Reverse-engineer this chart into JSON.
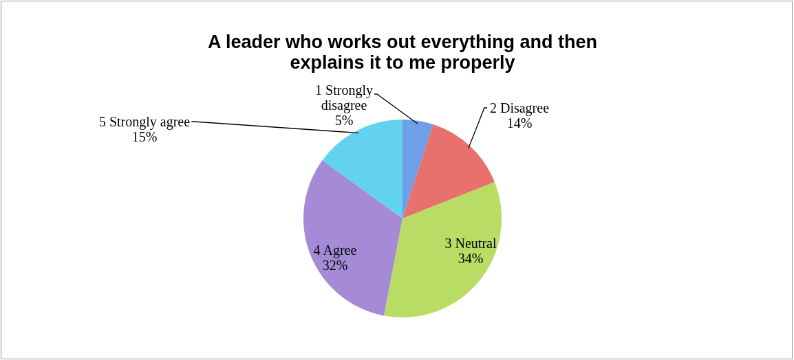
{
  "chart_data": {
    "type": "pie",
    "title": "A leader who works out everything and then explains it to me properly",
    "categories": [
      "1 Strongly disagree",
      "2 Disagree",
      "3 Neutral",
      "4 Agree",
      "5 Strongly agree"
    ],
    "values": [
      5,
      14,
      34,
      32,
      15
    ],
    "colors": [
      "#6f9fe8",
      "#e8716d",
      "#b8dc64",
      "#a58bd6",
      "#62d2ee"
    ],
    "value_labels": [
      "5%",
      "14%",
      "34%",
      "32%",
      "15%"
    ]
  }
}
